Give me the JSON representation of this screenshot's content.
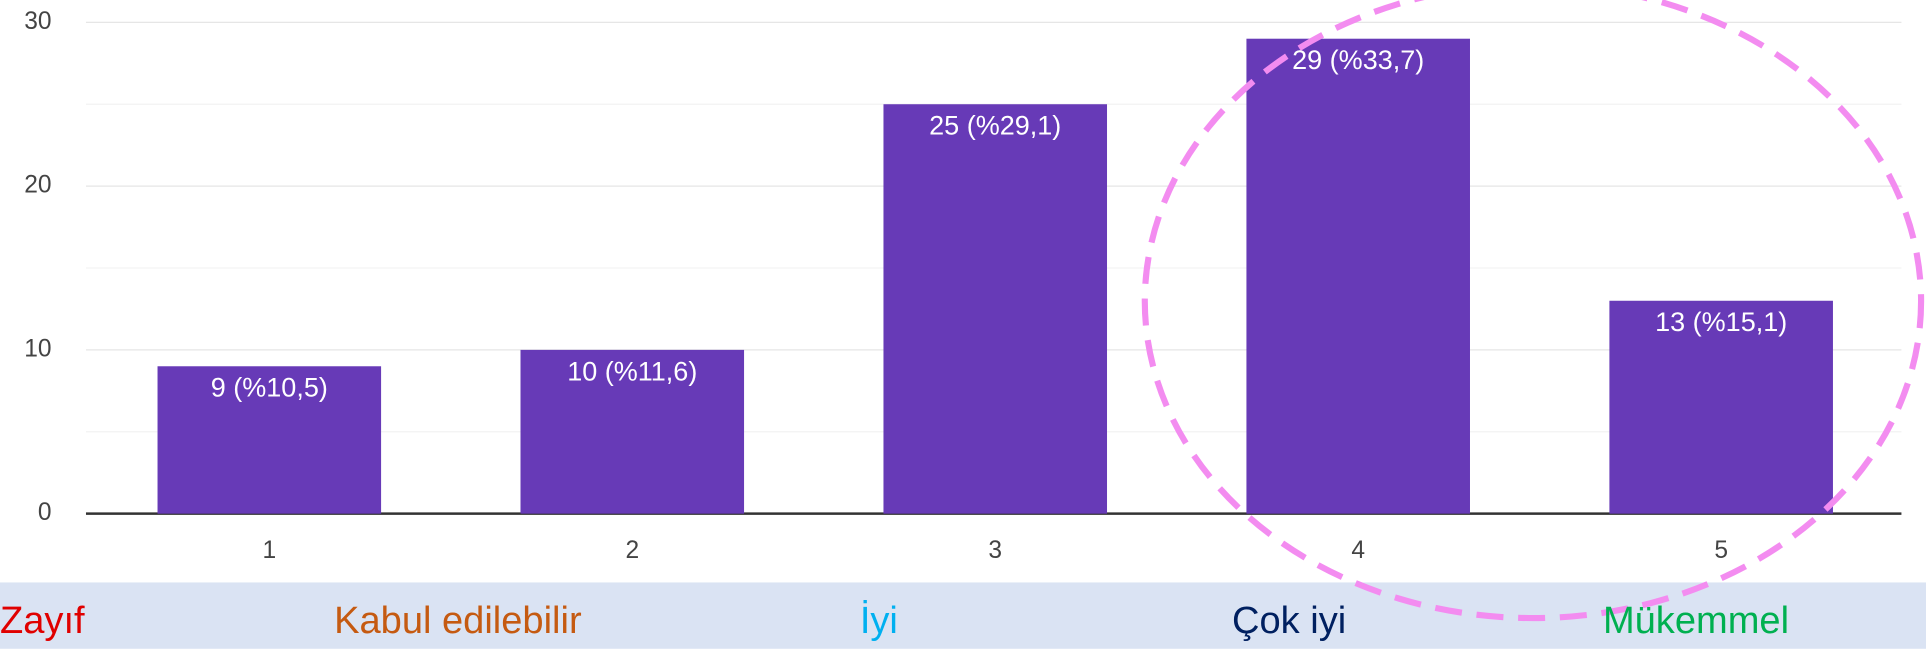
{
  "chart_data": {
    "type": "bar",
    "categories": [
      "1",
      "2",
      "3",
      "4",
      "5"
    ],
    "values": [
      9,
      10,
      25,
      29,
      13
    ],
    "value_labels": [
      "9 (%10,5)",
      "10 (%11,6)",
      "25 (%29,1)",
      "29 (%33,7)",
      "13 (%15,1)"
    ],
    "color": "#673ab7",
    "ylim": [
      0,
      30
    ],
    "yticks": [
      0,
      10,
      20,
      30
    ],
    "minor_yticks": [
      5,
      15,
      25
    ],
    "grid": true
  },
  "scale_labels": [
    {
      "text": "Zayıf",
      "color": "#e00000"
    },
    {
      "text": "Kabul edilebilir",
      "color": "#c55a11"
    },
    {
      "text": "İyi",
      "color": "#00b0f0"
    },
    {
      "text": "Çok iyi",
      "color": "#002060"
    },
    {
      "text": "Mükemmel",
      "color": "#00b050"
    }
  ]
}
